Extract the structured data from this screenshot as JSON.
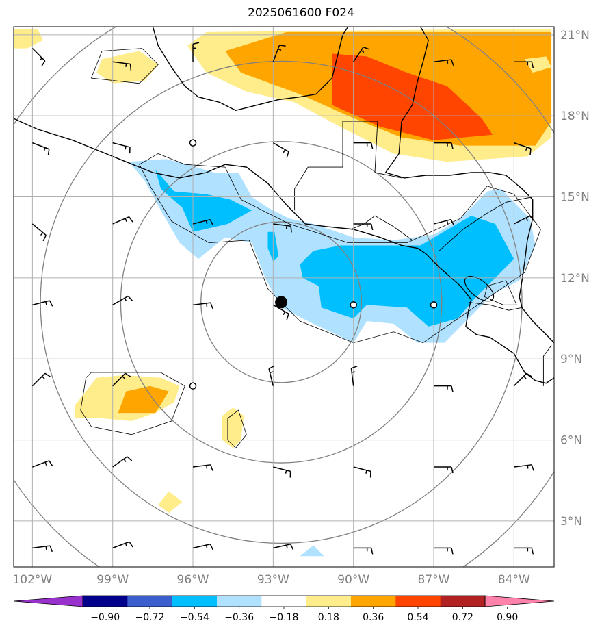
{
  "title": "2025061600 F024",
  "map": {
    "projection": "PlateCarree",
    "extent": {
      "lon_min": -102.7,
      "lon_max": -82.5,
      "lat_min": 1.3,
      "lat_max": 21.3
    },
    "lat_ticks": [
      {
        "value": 3,
        "label": "3°N"
      },
      {
        "value": 6,
        "label": "6°N"
      },
      {
        "value": 9,
        "label": "9°N"
      },
      {
        "value": 12,
        "label": "12°N"
      },
      {
        "value": 15,
        "label": "15°N"
      },
      {
        "value": 18,
        "label": "18°N"
      },
      {
        "value": 21,
        "label": "21°N"
      }
    ],
    "lon_ticks": [
      {
        "value": -102,
        "label": "102°W"
      },
      {
        "value": -99,
        "label": "99°W"
      },
      {
        "value": -96,
        "label": "96°W"
      },
      {
        "value": -93,
        "label": "93°W"
      },
      {
        "value": -90,
        "label": "90°W"
      },
      {
        "value": -87,
        "label": "87°W"
      },
      {
        "value": -84,
        "label": "84°W"
      }
    ],
    "gridline_color": "#b0b0b0",
    "center_marker": {
      "lon": -92.7,
      "lat": 11.1
    },
    "range_rings_deg": [
      3,
      6,
      9,
      12
    ],
    "station_circles": [
      {
        "lon": -96,
        "lat": 17
      },
      {
        "lon": -90,
        "lat": 11
      },
      {
        "lon": -87,
        "lat": 11
      },
      {
        "lon": -96,
        "lat": 8
      }
    ]
  },
  "colorbar": {
    "levels": [
      "−0.90",
      "−0.72",
      "−0.54",
      "−0.36",
      "−0.18",
      "0.18",
      "0.36",
      "0.54",
      "0.72",
      "0.90"
    ],
    "colors": [
      "#9932cc",
      "#00008b",
      "#3a5fcd",
      "#00bfff",
      "#b0e2ff",
      "#ffffff",
      "#ffec8b",
      "#ffa500",
      "#ff4500",
      "#b22222",
      "#ff82ab"
    ]
  },
  "chart_data": {
    "type": "heatmap",
    "title": "2025061600 F024",
    "xlabel": "",
    "ylabel": "",
    "xlim": [
      -102.7,
      -82.5
    ],
    "ylim": [
      1.3,
      21.3
    ],
    "regions": [
      {
        "name": "yellow NE",
        "level": 0.18,
        "color": "#ffec8b",
        "points": [
          [
            -95.5,
            21.1
          ],
          [
            -85.8,
            21.2
          ],
          [
            -82.6,
            21.2
          ],
          [
            -82.6,
            17.2
          ],
          [
            -83.5,
            16.5
          ],
          [
            -86.5,
            16.3
          ],
          [
            -88.5,
            16.6
          ],
          [
            -90.5,
            17.6
          ],
          [
            -92.2,
            18.5
          ],
          [
            -94.0,
            18.9
          ],
          [
            -95.5,
            19.6
          ],
          [
            -96.2,
            20.6
          ]
        ]
      },
      {
        "name": "orange NE",
        "level": 0.36,
        "color": "#ffa500",
        "points": [
          [
            -94.8,
            20.4
          ],
          [
            -92.5,
            21.1
          ],
          [
            -82.6,
            21.1
          ],
          [
            -82.6,
            17.8
          ],
          [
            -83.2,
            16.9
          ],
          [
            -86.0,
            16.9
          ],
          [
            -88.2,
            17.2
          ],
          [
            -90.2,
            18.0
          ],
          [
            -92.0,
            18.8
          ],
          [
            -94.2,
            19.6
          ]
        ]
      },
      {
        "name": "red NE",
        "level": 0.54,
        "color": "#ff4500",
        "points": [
          [
            -90.8,
            20.3
          ],
          [
            -89.5,
            20.2
          ],
          [
            -88.0,
            19.6
          ],
          [
            -86.5,
            19.1
          ],
          [
            -85.2,
            17.9
          ],
          [
            -84.8,
            17.3
          ],
          [
            -87.0,
            17.1
          ],
          [
            -89.0,
            17.6
          ],
          [
            -90.8,
            18.4
          ]
        ]
      },
      {
        "name": "yellow corner NW",
        "level": 0.18,
        "color": "#ffec8b",
        "points": [
          [
            -102.7,
            21.2
          ],
          [
            -101.8,
            21.2
          ],
          [
            -101.6,
            20.8
          ],
          [
            -102.2,
            20.5
          ],
          [
            -102.7,
            20.5
          ]
        ]
      },
      {
        "name": "yellow 99W 20N",
        "level": 0.18,
        "color": "#ffec8b",
        "points": [
          [
            -99.4,
            20.1
          ],
          [
            -98.0,
            20.4
          ],
          [
            -97.3,
            19.9
          ],
          [
            -97.8,
            19.3
          ],
          [
            -99.0,
            19.2
          ],
          [
            -99.6,
            19.6
          ]
        ]
      },
      {
        "name": "yellow 82.9W 19.9N",
        "level": 0.18,
        "color": "#ffec8b",
        "points": [
          [
            -83.6,
            20.1
          ],
          [
            -82.8,
            20.2
          ],
          [
            -82.6,
            19.8
          ],
          [
            -83.3,
            19.6
          ]
        ]
      },
      {
        "name": "light blue main",
        "level": -0.18,
        "color": "#b0e2ff",
        "points": [
          [
            -97.0,
            16.4
          ],
          [
            -96.2,
            16.2
          ],
          [
            -95.2,
            15.9
          ],
          [
            -94.3,
            15.9
          ],
          [
            -93.8,
            15.0
          ],
          [
            -93.2,
            14.6
          ],
          [
            -92.4,
            14.2
          ],
          [
            -91.5,
            14.0
          ],
          [
            -90.0,
            13.5
          ],
          [
            -88.5,
            13.4
          ],
          [
            -87.0,
            13.6
          ],
          [
            -86.0,
            14.2
          ],
          [
            -85.0,
            15.2
          ],
          [
            -84.5,
            15.3
          ],
          [
            -83.9,
            14.7
          ],
          [
            -83.4,
            14.2
          ],
          [
            -83.2,
            13.2
          ],
          [
            -83.8,
            11.9
          ],
          [
            -84.8,
            11.4
          ],
          [
            -85.6,
            10.6
          ],
          [
            -86.6,
            9.6
          ],
          [
            -87.6,
            9.6
          ],
          [
            -88.5,
            10.3
          ],
          [
            -89.5,
            10.4
          ],
          [
            -90.0,
            9.6
          ],
          [
            -91.5,
            10.3
          ],
          [
            -92.7,
            10.9
          ],
          [
            -93.3,
            12.0
          ],
          [
            -93.8,
            13.3
          ],
          [
            -94.8,
            13.5
          ],
          [
            -95.8,
            12.7
          ],
          [
            -96.5,
            13.3
          ],
          [
            -97.2,
            14.5
          ],
          [
            -97.8,
            15.6
          ],
          [
            -98.4,
            16.3
          ]
        ]
      },
      {
        "name": "blue west lobe",
        "level": -0.36,
        "color": "#00bfff",
        "points": [
          [
            -97.4,
            16.0
          ],
          [
            -96.7,
            15.2
          ],
          [
            -95.5,
            15.1
          ],
          [
            -94.6,
            14.9
          ],
          [
            -93.8,
            14.5
          ],
          [
            -94.7,
            14.0
          ],
          [
            -96.0,
            13.7
          ],
          [
            -96.4,
            14.6
          ],
          [
            -97.2,
            15.3
          ]
        ]
      },
      {
        "name": "blue sliver",
        "level": -0.36,
        "color": "#00bfff",
        "points": [
          [
            -93.2,
            13.7
          ],
          [
            -92.95,
            13.7
          ],
          [
            -92.8,
            12.8
          ],
          [
            -93.0,
            12.6
          ],
          [
            -93.2,
            13.1
          ]
        ]
      },
      {
        "name": "blue east lobe",
        "level": -0.36,
        "color": "#00bfff",
        "points": [
          [
            -91.5,
            13.0
          ],
          [
            -90.5,
            13.2
          ],
          [
            -89.2,
            13.2
          ],
          [
            -87.5,
            13.2
          ],
          [
            -85.6,
            14.3
          ],
          [
            -84.7,
            14.0
          ],
          [
            -84.0,
            12.7
          ],
          [
            -84.7,
            12.0
          ],
          [
            -85.5,
            11.2
          ],
          [
            -86.1,
            10.5
          ],
          [
            -87.2,
            10.2
          ],
          [
            -88.0,
            10.9
          ],
          [
            -89.5,
            11.0
          ],
          [
            -90.0,
            10.5
          ],
          [
            -91.2,
            10.9
          ],
          [
            -91.3,
            11.7
          ],
          [
            -91.9,
            12.0
          ],
          [
            -92.0,
            12.5
          ]
        ]
      },
      {
        "name": "light blue 91W 2N",
        "level": -0.18,
        "color": "#b0e2ff",
        "points": [
          [
            -92.0,
            1.7
          ],
          [
            -91.5,
            2.1
          ],
          [
            -91.1,
            1.7
          ]
        ]
      },
      {
        "name": "yellow 99W 8N",
        "level": 0.18,
        "color": "#ffec8b",
        "points": [
          [
            -100.4,
            7.3
          ],
          [
            -100.0,
            7.8
          ],
          [
            -99.6,
            8.3
          ],
          [
            -98.6,
            8.4
          ],
          [
            -97.2,
            8.3
          ],
          [
            -96.5,
            8.0
          ],
          [
            -96.7,
            7.4
          ],
          [
            -97.4,
            7.0
          ],
          [
            -98.3,
            6.7
          ],
          [
            -99.4,
            6.8
          ],
          [
            -100.4,
            6.8
          ]
        ]
      },
      {
        "name": "orange 98W 7N",
        "level": 0.36,
        "color": "#ffa500",
        "points": [
          [
            -98.8,
            7.0
          ],
          [
            -98.5,
            7.8
          ],
          [
            -97.6,
            8.0
          ],
          [
            -96.9,
            7.8
          ],
          [
            -97.4,
            7.0
          ]
        ]
      },
      {
        "name": "yellow 94.5W 6.5N",
        "level": 0.18,
        "color": "#ffec8b",
        "points": [
          [
            -94.9,
            6.9
          ],
          [
            -94.5,
            7.2
          ],
          [
            -94.1,
            6.9
          ],
          [
            -94.2,
            6.0
          ],
          [
            -94.5,
            5.7
          ],
          [
            -94.9,
            6.0
          ]
        ]
      },
      {
        "name": "yellow 96.5W 4N",
        "level": 0.18,
        "color": "#ffec8b",
        "points": [
          [
            -97.3,
            3.6
          ],
          [
            -96.9,
            4.1
          ],
          [
            -96.4,
            3.7
          ],
          [
            -96.9,
            3.3
          ]
        ]
      }
    ],
    "wind_barbs": [
      {
        "lon": -102,
        "lat": 20.5,
        "u": -5,
        "v": 5
      },
      {
        "lon": -99,
        "lat": 20.0,
        "u": -8,
        "v": 1
      },
      {
        "lon": -96,
        "lat": 20.0,
        "u": 0,
        "v": -8
      },
      {
        "lon": -93,
        "lat": 20.0,
        "u": -3,
        "v": -8
      },
      {
        "lon": -90,
        "lat": 20.0,
        "u": -4,
        "v": -6
      },
      {
        "lon": -87,
        "lat": 20.0,
        "u": -8,
        "v": -1
      },
      {
        "lon": -84,
        "lat": 20.0,
        "u": -9,
        "v": 0
      },
      {
        "lon": -102,
        "lat": 17.0,
        "u": -8,
        "v": 3
      },
      {
        "lon": -99,
        "lat": 17.0,
        "u": -8,
        "v": 2
      },
      {
        "lon": -93,
        "lat": 17.0,
        "u": -7,
        "v": 4
      },
      {
        "lon": -90,
        "lat": 17.0,
        "u": -8,
        "v": 0
      },
      {
        "lon": -87,
        "lat": 17.0,
        "u": -8,
        "v": 0
      },
      {
        "lon": -84,
        "lat": 17.0,
        "u": -9,
        "v": 3
      },
      {
        "lon": -102,
        "lat": 14.0,
        "u": -6,
        "v": 5
      },
      {
        "lon": -99,
        "lat": 14.0,
        "u": -7,
        "v": -3
      },
      {
        "lon": -96,
        "lat": 14.0,
        "u": -8,
        "v": -2
      },
      {
        "lon": -93,
        "lat": 14.0,
        "u": -8,
        "v": 1
      },
      {
        "lon": -90,
        "lat": 14.0,
        "u": -8,
        "v": 0
      },
      {
        "lon": -87,
        "lat": 14.0,
        "u": -8,
        "v": -2
      },
      {
        "lon": -84,
        "lat": 14.0,
        "u": -8,
        "v": -4
      },
      {
        "lon": -102,
        "lat": 11.0,
        "u": -8,
        "v": -2
      },
      {
        "lon": -99,
        "lat": 11.0,
        "u": -7,
        "v": -4
      },
      {
        "lon": -96,
        "lat": 11.0,
        "u": -8,
        "v": -1
      },
      {
        "lon": -93,
        "lat": 11.0,
        "u": -7,
        "v": 4
      },
      {
        "lon": -102,
        "lat": 8.0,
        "u": -5,
        "v": -5
      },
      {
        "lon": -99,
        "lat": 8.0,
        "u": -5,
        "v": -5
      },
      {
        "lon": -93,
        "lat": 8.0,
        "u": 2,
        "v": -8
      },
      {
        "lon": -90,
        "lat": 8.0,
        "u": 1,
        "v": -8
      },
      {
        "lon": -87,
        "lat": 8.0,
        "u": -8,
        "v": 0
      },
      {
        "lon": -84,
        "lat": 8.0,
        "u": -5,
        "v": -5
      },
      {
        "lon": -102,
        "lat": 5.0,
        "u": -8,
        "v": -3
      },
      {
        "lon": -99,
        "lat": 5.0,
        "u": -7,
        "v": -5
      },
      {
        "lon": -96,
        "lat": 5.0,
        "u": -8,
        "v": -1
      },
      {
        "lon": -93,
        "lat": 5.0,
        "u": -8,
        "v": 2
      },
      {
        "lon": -90,
        "lat": 5.0,
        "u": -8,
        "v": 2
      },
      {
        "lon": -87,
        "lat": 5.0,
        "u": -8,
        "v": 0
      },
      {
        "lon": -84,
        "lat": 5.0,
        "u": -8,
        "v": -1
      },
      {
        "lon": -102,
        "lat": 2.0,
        "u": -8,
        "v": -1
      },
      {
        "lon": -99,
        "lat": 2.0,
        "u": -8,
        "v": -3
      },
      {
        "lon": -96,
        "lat": 2.0,
        "u": -9,
        "v": -2
      },
      {
        "lon": -93,
        "lat": 2.0,
        "u": -9,
        "v": -2
      },
      {
        "lon": -90,
        "lat": 2.0,
        "u": -8,
        "v": 0
      },
      {
        "lon": -87,
        "lat": 2.0,
        "u": -8,
        "v": 0
      },
      {
        "lon": -84,
        "lat": 2.0,
        "u": -8,
        "v": 0
      }
    ],
    "outline_contours": [
      [
        [
          -99.4,
          20.4
        ],
        [
          -97.9,
          20.5
        ],
        [
          -97.3,
          19.9
        ],
        [
          -98.0,
          19.2
        ],
        [
          -99.8,
          19.4
        ]
      ],
      [
        [
          -97.3,
          16.6
        ],
        [
          -96.3,
          16.2
        ],
        [
          -94.8,
          16.1
        ],
        [
          -94.2,
          14.9
        ],
        [
          -92.4,
          14.0
        ],
        [
          -90.2,
          13.3
        ],
        [
          -88.0,
          13.3
        ],
        [
          -86.0,
          14.2
        ],
        [
          -85.0,
          15.4
        ],
        [
          -84.0,
          15.1
        ],
        [
          -83.0,
          13.8
        ],
        [
          -83.6,
          12.2
        ],
        [
          -85.5,
          10.9
        ],
        [
          -87.4,
          9.6
        ],
        [
          -88.5,
          10.0
        ],
        [
          -90.0,
          9.6
        ],
        [
          -92.0,
          10.4
        ],
        [
          -93.2,
          11.6
        ],
        [
          -93.9,
          13.4
        ],
        [
          -95.4,
          13.3
        ],
        [
          -96.8,
          14.1
        ],
        [
          -97.6,
          15.4
        ],
        [
          -98.0,
          16.2
        ]
      ],
      [
        [
          -100.0,
          8.3
        ],
        [
          -99.8,
          8.5
        ],
        [
          -97.2,
          8.5
        ],
        [
          -96.3,
          8.0
        ],
        [
          -96.8,
          6.7
        ],
        [
          -98.3,
          6.2
        ],
        [
          -99.8,
          6.5
        ],
        [
          -100.2,
          7.1
        ]
      ],
      [
        [
          -94.7,
          6.8
        ],
        [
          -94.3,
          7.1
        ],
        [
          -94.0,
          6.2
        ],
        [
          -94.4,
          5.7
        ],
        [
          -94.7,
          6.0
        ]
      ],
      [
        [
          -85.0,
          11.7
        ],
        [
          -84.3,
          11.9
        ],
        [
          -83.9,
          11.0
        ],
        [
          -84.4,
          11.0
        ],
        [
          -85.1,
          11.3
        ]
      ]
    ]
  }
}
